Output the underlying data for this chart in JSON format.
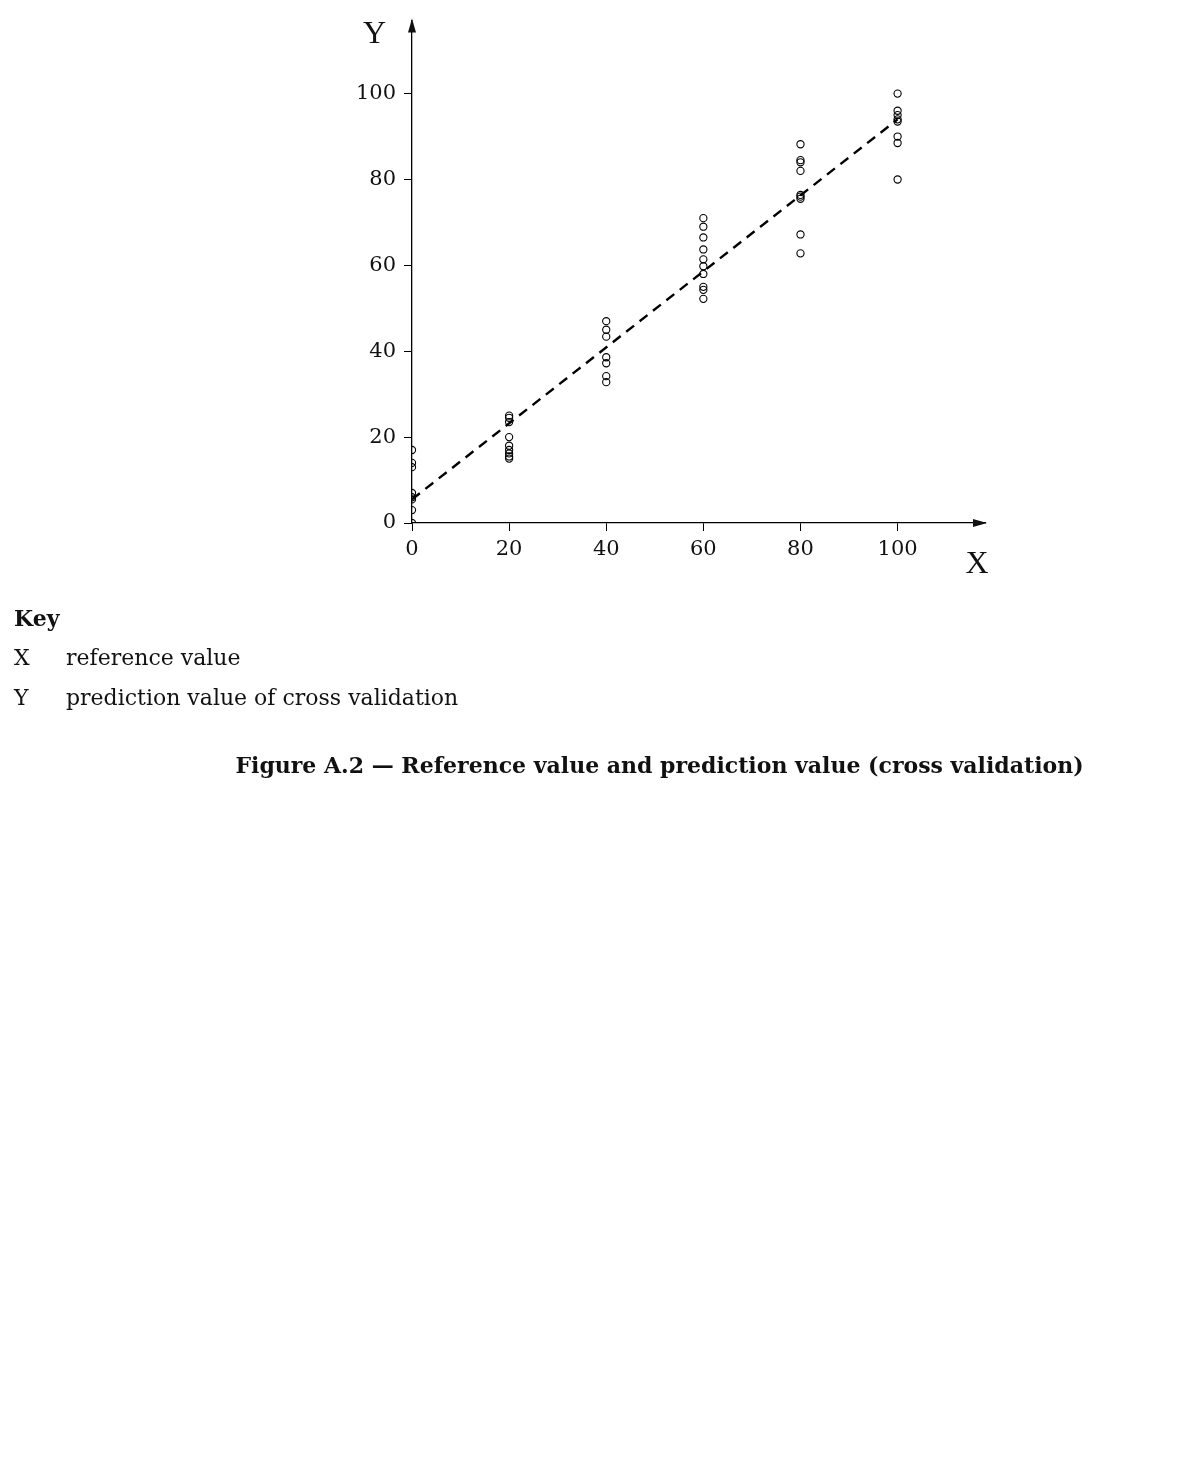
{
  "chart_data": {
    "type": "scatter",
    "title": "Figure A.2 — Reference value and prediction value (cross validation)",
    "xlabel": "X",
    "ylabel": "Y",
    "annotations": [
      "Key",
      "X",
      "reference value",
      "Y",
      "prediction value of cross validation"
    ],
    "xlim": [
      0,
      118
    ],
    "ylim": [
      0,
      117
    ],
    "xticks": [
      0,
      20,
      40,
      60,
      80,
      100
    ],
    "yticks": [
      0,
      20,
      40,
      60,
      80,
      100
    ],
    "grid": false,
    "legend": false,
    "series": [
      {
        "color": "#000000",
        "marker": "circle",
        "x": [
          0,
          0,
          0,
          0,
          0,
          0,
          0,
          0,
          20,
          20,
          20,
          20,
          20,
          20,
          20,
          20,
          20,
          40,
          40,
          40,
          40,
          40,
          40,
          40,
          60,
          60,
          60,
          60,
          60,
          60,
          60,
          60,
          60,
          60,
          80,
          80,
          80,
          80,
          80,
          80,
          80,
          80,
          80,
          100,
          100,
          100,
          100,
          100,
          100,
          100,
          100
        ],
        "values": [
          17,
          14,
          13,
          7,
          6,
          5.5,
          3,
          0,
          25,
          24.5,
          23.5,
          20,
          18,
          17,
          16.2,
          15.5,
          15,
          47,
          45,
          43.4,
          38.6,
          37.2,
          34.2,
          32.8,
          71,
          69,
          66.5,
          63.7,
          61.4,
          59.8,
          58,
          55,
          54.3,
          52.2,
          88.2,
          84.5,
          84,
          82,
          76.4,
          76,
          75.5,
          67.2,
          62.8,
          100,
          96,
          95,
          94,
          93.5,
          90,
          88.5,
          80
        ]
      },
      {
        "type": "line",
        "color": "#000000",
        "marker": "none",
        "line_style": "dashed",
        "x": [
          0,
          100
        ],
        "values": [
          5.5,
          94
        ]
      }
    ]
  }
}
